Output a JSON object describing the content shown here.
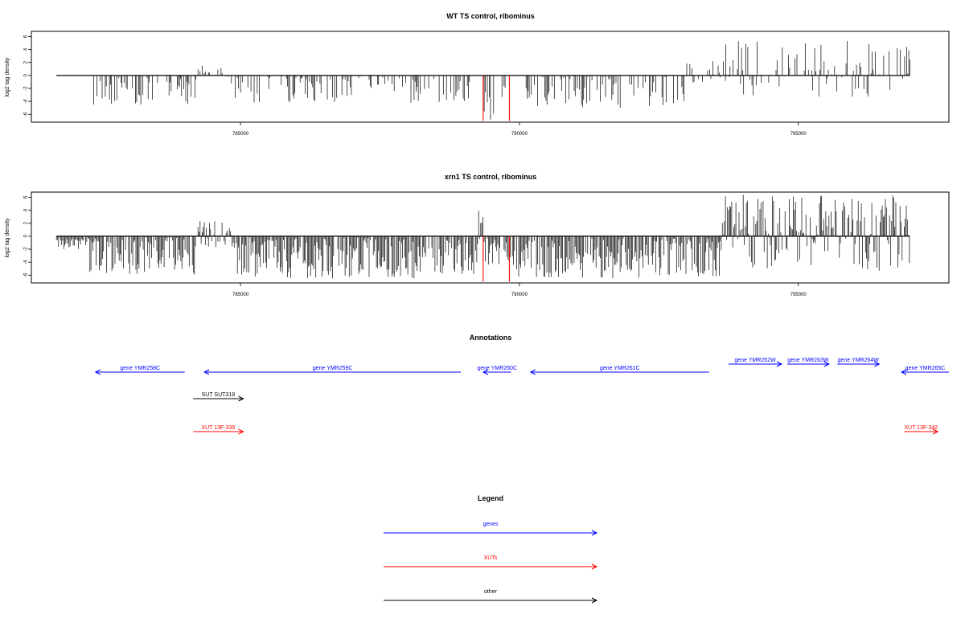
{
  "chart_data": [
    {
      "type": "bar",
      "title": "WT TS control, ribominus",
      "ylabel": "log2 tag density",
      "xlabel": "",
      "xlim": [
        781250,
        797700
      ],
      "ylim": [
        -7.2,
        6.8
      ],
      "xticks": [
        785000,
        790000,
        795000
      ],
      "yticks": [
        6,
        4,
        2,
        0,
        -2,
        -4,
        -6
      ],
      "signal_range": [
        781700,
        797000
      ],
      "series": [
        {
          "segments": [
            {
              "start": 782350,
              "end": 784200,
              "min": -4.5,
              "max": 0
            },
            {
              "start": 784200,
              "end": 784850,
              "min": -1.5,
              "max": 1.6
            },
            {
              "start": 784850,
              "end": 789250,
              "min": -4.2,
              "max": 0
            },
            {
              "start": 789350,
              "end": 789750,
              "min": -7.0,
              "max": 0
            },
            {
              "start": 790100,
              "end": 793000,
              "min": -5.0,
              "max": 0
            },
            {
              "start": 793000,
              "end": 793700,
              "min": -1.2,
              "max": 2.3
            },
            {
              "start": 793700,
              "end": 797000,
              "min": -3.5,
              "max": 5.5
            }
          ]
        }
      ],
      "highlights": [
        {
          "x": 789350,
          "y": -7.0,
          "color": "#ff0000"
        },
        {
          "x": 789820,
          "y": -7.0,
          "color": "#ff0000"
        }
      ]
    },
    {
      "type": "bar",
      "title": "xrn1 TS control, ribominus",
      "ylabel": "log2 tag density",
      "xlabel": "",
      "xlim": [
        781250,
        797700
      ],
      "ylim": [
        -7.2,
        6.8
      ],
      "xticks": [
        785000,
        790000,
        795000
      ],
      "yticks": [
        6,
        4,
        2,
        0,
        -2,
        -4,
        -6
      ],
      "signal_range": [
        781700,
        797000
      ],
      "series": [
        {
          "segments": [
            {
              "start": 781700,
              "end": 782300,
              "min": -2.0,
              "max": 0
            },
            {
              "start": 782300,
              "end": 784200,
              "min": -6.0,
              "max": 0
            },
            {
              "start": 784200,
              "end": 784850,
              "min": -2.0,
              "max": 2.6
            },
            {
              "start": 784850,
              "end": 789250,
              "min": -6.5,
              "max": 0
            },
            {
              "start": 789250,
              "end": 789350,
              "min": -1.5,
              "max": 4.0
            },
            {
              "start": 789350,
              "end": 789800,
              "min": -4.5,
              "max": 0
            },
            {
              "start": 789800,
              "end": 793600,
              "min": -6.5,
              "max": 0
            },
            {
              "start": 793600,
              "end": 797000,
              "min": -5.5,
              "max": 6.4
            }
          ]
        }
      ],
      "highlights": [
        {
          "x": 789350,
          "y": -7.0,
          "color": "#ff0000"
        },
        {
          "x": 789820,
          "y": -7.0,
          "color": "#ff0000"
        }
      ]
    }
  ],
  "annotations": {
    "title": "Annotations",
    "xlim": [
      781250,
      797700
    ],
    "items": [
      {
        "label": "gene YMR258C",
        "start": 784000,
        "end": 782400,
        "row": "genes",
        "color": "#0000ff"
      },
      {
        "label": "gene YMR259C",
        "start": 788950,
        "end": 784350,
        "row": "genes",
        "color": "#0000ff"
      },
      {
        "label": "gene YMR260C",
        "start": 789850,
        "end": 789350,
        "row": "genes",
        "color": "#0000ff"
      },
      {
        "label": "gene YMR261C",
        "start": 793400,
        "end": 790200,
        "row": "genes",
        "color": "#0000ff"
      },
      {
        "label": "gene YMR262W",
        "start": 793750,
        "end": 794700,
        "row": "genes_up",
        "color": "#0000ff"
      },
      {
        "label": "gene YMR263W",
        "start": 794800,
        "end": 795550,
        "row": "genes_up",
        "color": "#0000ff"
      },
      {
        "label": "gene YMR264W",
        "start": 795700,
        "end": 796450,
        "row": "genes_up",
        "color": "#0000ff"
      },
      {
        "label": "gene YMR265C",
        "start": 797700,
        "end": 796850,
        "row": "genes",
        "color": "#0000ff"
      },
      {
        "label": "SUT SUT319",
        "start": 784150,
        "end": 785050,
        "row": "other",
        "color": "#000000"
      },
      {
        "label": "XUT 13F-339",
        "start": 784150,
        "end": 785050,
        "row": "xuts",
        "color": "#ff0000"
      },
      {
        "label": "XUT 13F-342",
        "start": 796900,
        "end": 797500,
        "row": "xuts",
        "color": "#ff0000"
      }
    ]
  },
  "legend": {
    "title": "Legend",
    "items": [
      {
        "label": "genes",
        "color": "#0000ff"
      },
      {
        "label": "XUTs",
        "color": "#ff0000"
      },
      {
        "label": "other",
        "color": "#000000"
      }
    ]
  }
}
